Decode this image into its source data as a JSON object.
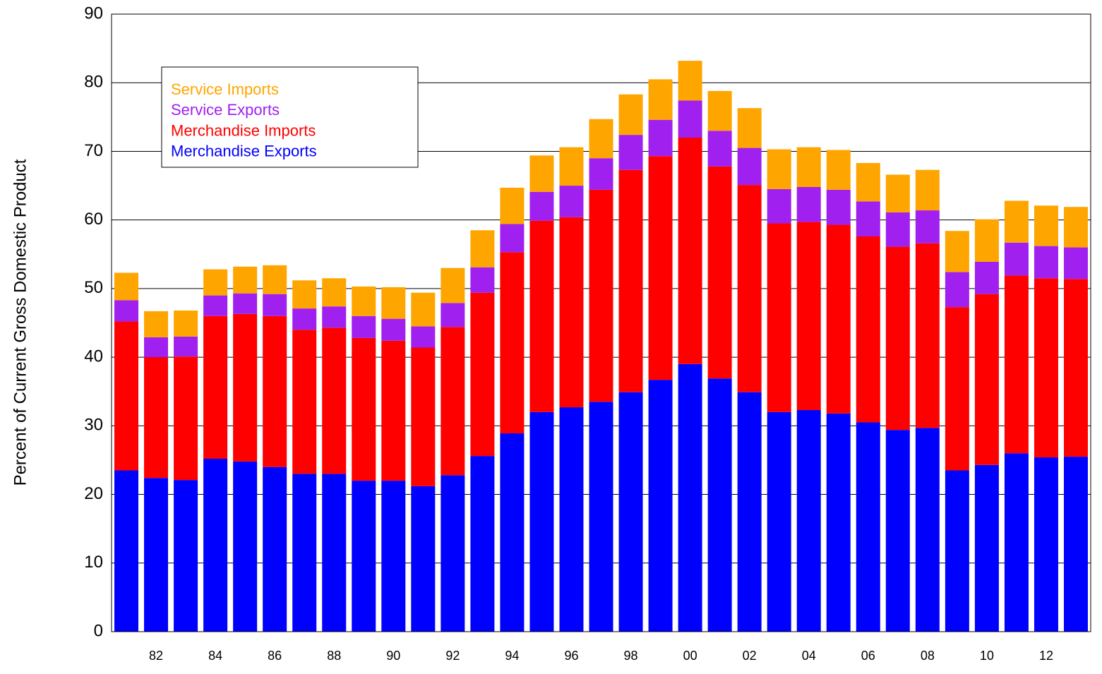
{
  "chart_data": {
    "type": "stacked_bar",
    "y_label": "Percent of Current Gross Domestic Product",
    "categories": [
      null,
      "82",
      null,
      "84",
      null,
      "86",
      null,
      "88",
      null,
      "90",
      null,
      "92",
      null,
      "94",
      null,
      "96",
      null,
      "98",
      null,
      "00",
      null,
      "02",
      null,
      "04",
      null,
      "06",
      null,
      "08",
      null,
      "10",
      null,
      "12",
      null
    ],
    "series": [
      {
        "name": "Merchandise Exports",
        "color": "#0000ff",
        "values": [
          23.5,
          22.4,
          22.1,
          25.2,
          24.8,
          24.0,
          23.0,
          23.0,
          22.0,
          22.0,
          21.2,
          22.8,
          25.6,
          28.9,
          32.0,
          32.7,
          33.5,
          34.9,
          36.7,
          39.0,
          36.9,
          34.9,
          32.0,
          32.3,
          31.8,
          30.5,
          29.4,
          29.7,
          23.5,
          24.3,
          26.0,
          25.4,
          25.5
        ]
      },
      {
        "name": "Merchandise Imports",
        "color": "#ff0000",
        "values": [
          21.7,
          17.6,
          18.0,
          20.8,
          21.5,
          22.0,
          21.0,
          21.3,
          20.8,
          20.4,
          20.2,
          21.6,
          23.8,
          26.4,
          27.9,
          27.7,
          30.9,
          32.4,
          32.6,
          33.0,
          30.9,
          30.2,
          27.5,
          27.4,
          27.5,
          27.1,
          26.7,
          26.9,
          23.8,
          24.9,
          25.9,
          26.1,
          25.9
        ]
      },
      {
        "name": "Service Exports",
        "color": "#a020f0",
        "values": [
          3.1,
          2.9,
          2.9,
          3.0,
          3.0,
          3.2,
          3.1,
          3.1,
          3.2,
          3.2,
          3.1,
          3.5,
          3.7,
          4.1,
          4.2,
          4.6,
          4.6,
          5.1,
          5.3,
          5.4,
          5.2,
          5.4,
          5.0,
          5.1,
          5.1,
          5.1,
          5.0,
          4.8,
          5.1,
          4.7,
          4.8,
          4.7,
          4.6
        ]
      },
      {
        "name": "Service Imports",
        "color": "#ffa500",
        "values": [
          4.0,
          3.8,
          3.8,
          3.8,
          3.9,
          4.2,
          4.1,
          4.1,
          4.3,
          4.6,
          4.9,
          5.1,
          5.4,
          5.3,
          5.3,
          5.6,
          5.7,
          5.9,
          5.9,
          5.8,
          5.8,
          5.8,
          5.8,
          5.8,
          5.8,
          5.6,
          5.5,
          5.9,
          6.0,
          6.2,
          6.1,
          5.9,
          5.9
        ]
      }
    ],
    "ylim": [
      0,
      90
    ],
    "yticks": [
      0,
      10,
      20,
      30,
      40,
      50,
      60,
      70,
      80,
      90
    ],
    "grid": true,
    "legend": "upper left"
  }
}
